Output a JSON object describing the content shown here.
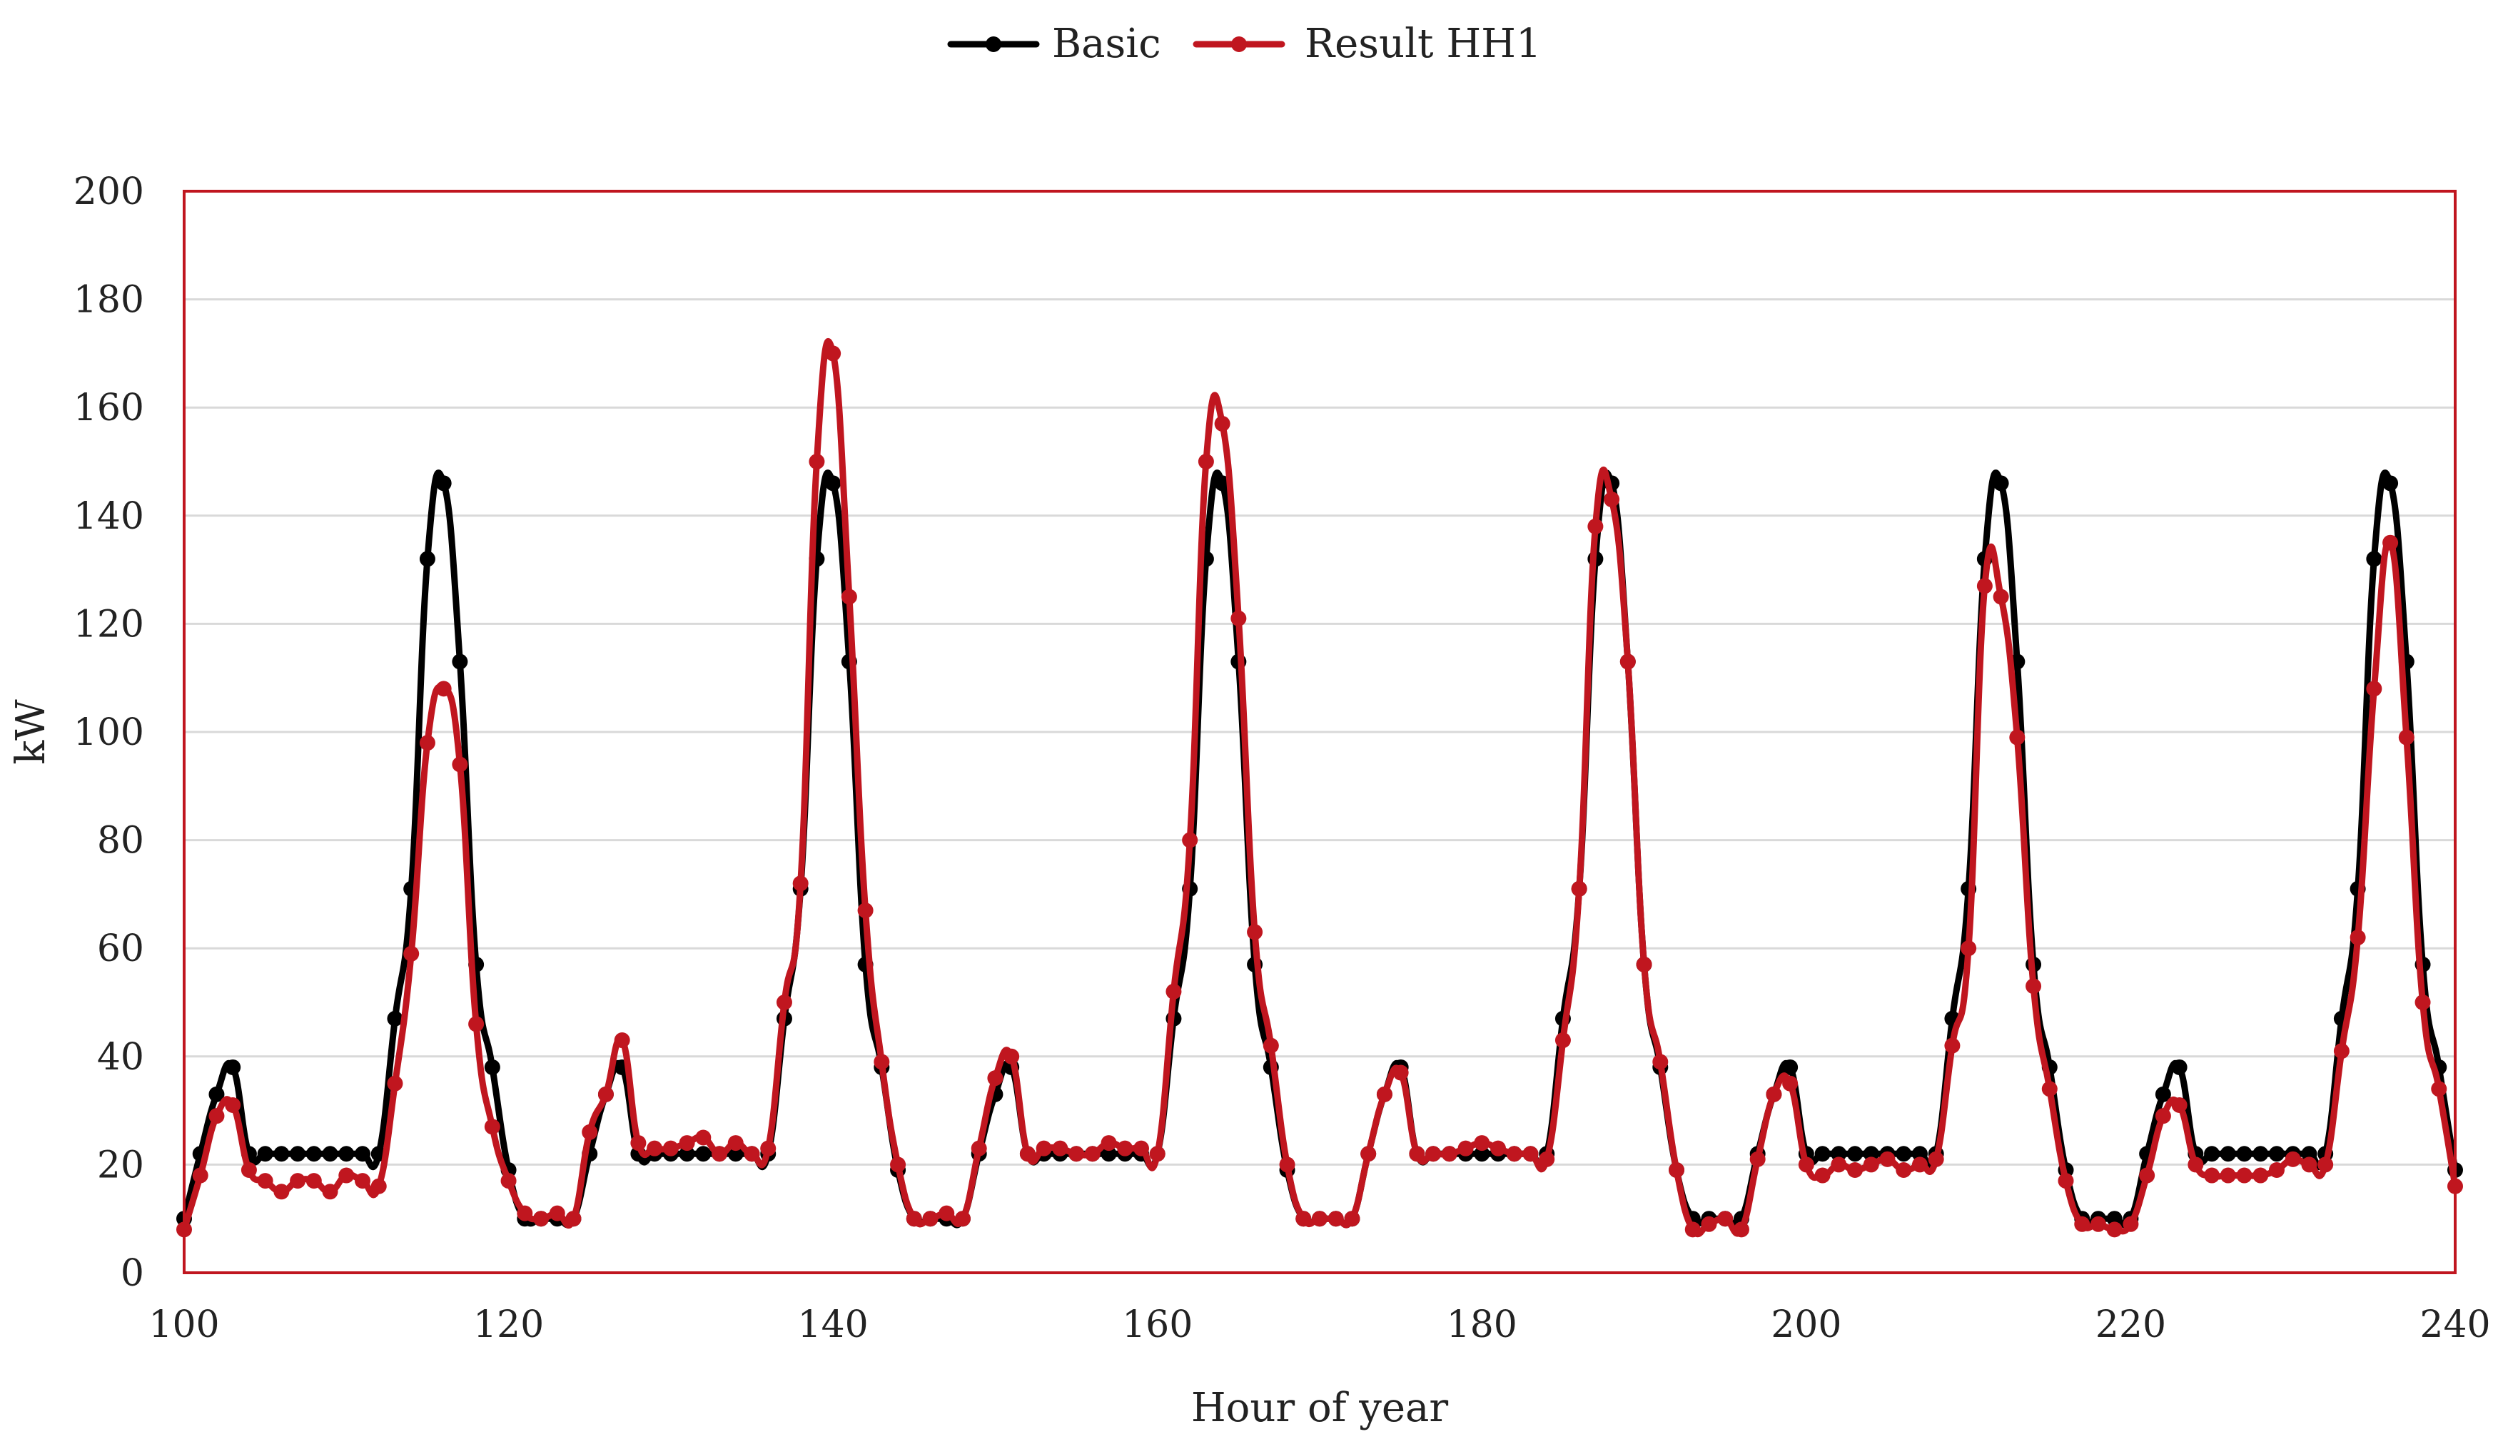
{
  "chart_data": {
    "type": "line",
    "title": "",
    "xlabel": "Hour of year",
    "ylabel": "kW",
    "xlim": [
      100,
      240
    ],
    "ylim": [
      0,
      200
    ],
    "x_ticks": [
      "100",
      "120",
      "140",
      "160",
      "180",
      "200",
      "220",
      "240"
    ],
    "y_ticks": [
      "0",
      "20",
      "40",
      "60",
      "80",
      "100",
      "120",
      "140",
      "160",
      "180",
      "200"
    ],
    "grid": true,
    "legend_position": "top-center",
    "x": [
      100,
      101,
      102,
      103,
      104,
      105,
      106,
      107,
      108,
      109,
      110,
      111,
      112,
      113,
      114,
      115,
      116,
      117,
      118,
      119,
      120,
      121,
      122,
      123,
      124,
      125,
      126,
      127,
      128,
      129,
      130,
      131,
      132,
      133,
      134,
      135,
      136,
      137,
      138,
      139,
      140,
      141,
      142,
      143,
      144,
      145,
      146,
      147,
      148,
      149,
      150,
      151,
      152,
      153,
      154,
      155,
      156,
      157,
      158,
      159,
      160,
      161,
      162,
      163,
      164,
      165,
      166,
      167,
      168,
      169,
      170,
      171,
      172,
      173,
      174,
      175,
      176,
      177,
      178,
      179,
      180,
      181,
      182,
      183,
      184,
      185,
      186,
      187,
      188,
      189,
      190,
      191,
      192,
      193,
      194,
      195,
      196,
      197,
      198,
      199,
      200,
      201,
      202,
      203,
      204,
      205,
      206,
      207,
      208,
      209,
      210,
      211,
      212,
      213,
      214,
      215,
      216,
      217,
      218,
      219,
      220,
      221,
      222,
      223,
      224,
      225,
      226,
      227,
      228,
      229,
      230,
      231,
      232,
      233,
      234,
      235,
      236,
      237,
      238,
      239,
      240
    ],
    "series": [
      {
        "name": "Basic",
        "color": "#000000",
        "values": [
          10,
          22,
          33,
          38,
          22,
          22,
          22,
          22,
          22,
          22,
          22,
          22,
          22,
          47,
          71,
          132,
          146,
          113,
          57,
          38,
          19,
          10,
          10,
          10,
          10,
          22,
          33,
          38,
          22,
          22,
          22,
          22,
          22,
          22,
          22,
          22,
          22,
          47,
          71,
          132,
          146,
          113,
          57,
          38,
          19,
          10,
          10,
          10,
          10,
          22,
          33,
          38,
          22,
          22,
          22,
          22,
          22,
          22,
          22,
          22,
          22,
          47,
          71,
          132,
          146,
          113,
          57,
          38,
          19,
          10,
          10,
          10,
          10,
          22,
          33,
          38,
          22,
          22,
          22,
          22,
          22,
          22,
          22,
          22,
          22,
          47,
          71,
          132,
          146,
          113,
          57,
          38,
          19,
          10,
          10,
          10,
          10,
          22,
          33,
          38,
          22,
          22,
          22,
          22,
          22,
          22,
          22,
          22,
          22,
          47,
          71,
          132,
          146,
          113,
          57,
          38,
          19,
          10,
          10,
          10,
          10,
          22,
          33,
          38,
          22,
          22,
          22,
          22,
          22,
          22,
          22,
          22,
          22,
          47,
          71,
          132,
          146,
          113,
          57,
          38,
          19
        ]
      },
      {
        "name": "Result HH1",
        "color": "#c0161f",
        "values": [
          8,
          18,
          29,
          31,
          19,
          17,
          15,
          17,
          17,
          15,
          18,
          17,
          16,
          35,
          59,
          98,
          108,
          94,
          46,
          27,
          17,
          11,
          10,
          11,
          10,
          26,
          33,
          43,
          24,
          23,
          23,
          24,
          25,
          22,
          24,
          22,
          23,
          50,
          72,
          150,
          170,
          125,
          67,
          39,
          20,
          10,
          10,
          11,
          10,
          23,
          36,
          40,
          22,
          23,
          23,
          22,
          22,
          24,
          23,
          23,
          22,
          52,
          80,
          150,
          157,
          121,
          63,
          42,
          20,
          10,
          10,
          10,
          10,
          22,
          33,
          37,
          22,
          22,
          22,
          23,
          24,
          23,
          22,
          22,
          21,
          43,
          71,
          138,
          143,
          113,
          57,
          39,
          19,
          8,
          9,
          10,
          8,
          21,
          33,
          35,
          20,
          18,
          20,
          19,
          20,
          21,
          19,
          20,
          21,
          42,
          60,
          127,
          125,
          99,
          53,
          34,
          17,
          9,
          9,
          8,
          9,
          18,
          29,
          31,
          20,
          18,
          18,
          18,
          18,
          19,
          21,
          20,
          20,
          41,
          62,
          108,
          135,
          99,
          50,
          34,
          16
        ]
      }
    ]
  }
}
